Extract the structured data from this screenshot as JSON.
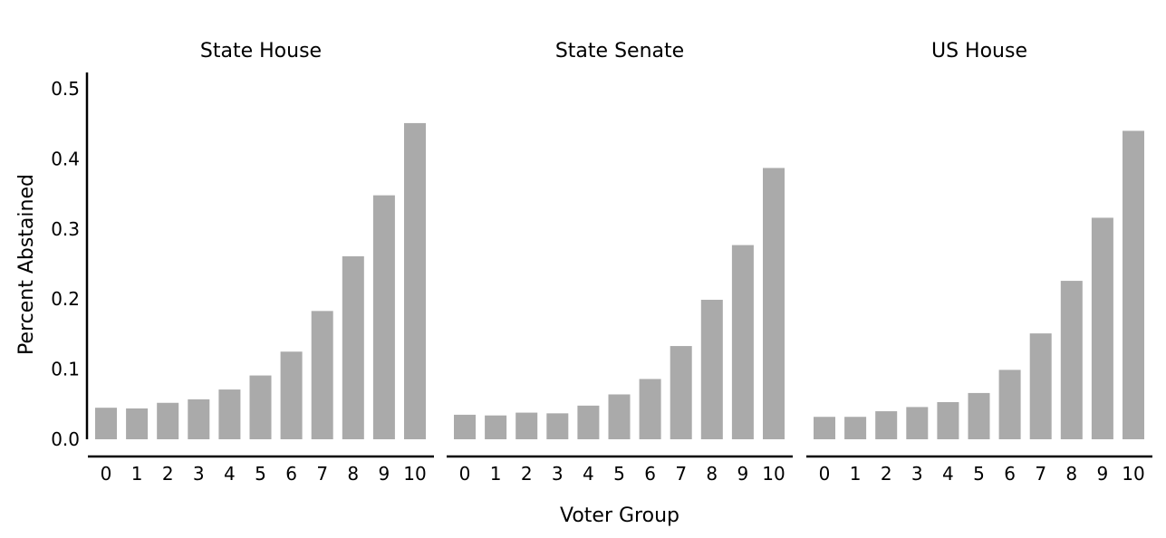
{
  "chart_data": {
    "type": "bar",
    "xlabel": "Voter Group",
    "ylabel": "Percent Abstained",
    "ylim": [
      0,
      0.5
    ],
    "yticks": [
      "0.0",
      "0.1",
      "0.2",
      "0.3",
      "0.4",
      "0.5"
    ],
    "ytick_values": [
      0,
      0.1,
      0.2,
      0.3,
      0.4,
      0.5
    ],
    "categories": [
      "0",
      "1",
      "2",
      "3",
      "4",
      "5",
      "6",
      "7",
      "8",
      "9",
      "10"
    ],
    "bar_color": "#aaaaaa",
    "grid": false,
    "panels": [
      {
        "title": "State House",
        "values": [
          0.045,
          0.044,
          0.052,
          0.057,
          0.071,
          0.091,
          0.125,
          0.183,
          0.261,
          0.348,
          0.451
        ]
      },
      {
        "title": "State Senate",
        "values": [
          0.035,
          0.034,
          0.038,
          0.037,
          0.048,
          0.064,
          0.086,
          0.133,
          0.199,
          0.277,
          0.387
        ]
      },
      {
        "title": "US House",
        "values": [
          0.032,
          0.032,
          0.04,
          0.046,
          0.053,
          0.066,
          0.099,
          0.151,
          0.226,
          0.316,
          0.44
        ]
      }
    ]
  }
}
